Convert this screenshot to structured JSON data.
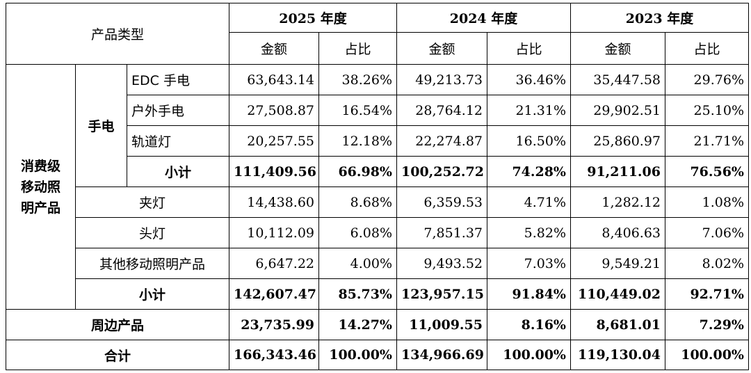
{
  "header": {
    "product_type": "产品类型",
    "years": [
      "2025 年度",
      "2024 年度",
      "2023 年度"
    ],
    "amount": "金额",
    "ratio": "占比"
  },
  "groups": {
    "consumer": [
      "消费级",
      "移动照",
      "明产品"
    ],
    "flashlight": "手电"
  },
  "rows": {
    "edc": {
      "label": "EDC 手电",
      "values": [
        "63,643.14",
        "38.26%",
        "49,213.73",
        "36.46%",
        "35,447.58",
        "29.76%"
      ]
    },
    "outdoor": {
      "label": "户外手电",
      "values": [
        "27,508.87",
        "16.54%",
        "28,764.12",
        "21.31%",
        "29,902.51",
        "25.10%"
      ]
    },
    "track": {
      "label": "轨道灯",
      "values": [
        "20,257.55",
        "12.18%",
        "22,274.87",
        "16.50%",
        "25,860.97",
        "21.71%"
      ]
    },
    "sub1": {
      "label": "小计",
      "values": [
        "111,409.56",
        "66.98%",
        "100,252.72",
        "74.28%",
        "91,211.06",
        "76.56%"
      ]
    },
    "clip": {
      "label": "夹灯",
      "values": [
        "14,438.60",
        "8.68%",
        "6,359.53",
        "4.71%",
        "1,282.12",
        "1.08%"
      ]
    },
    "head": {
      "label": "头灯",
      "values": [
        "10,112.09",
        "6.08%",
        "7,851.37",
        "5.82%",
        "8,406.63",
        "7.06%"
      ]
    },
    "other": {
      "label": "其他移动照明产品",
      "values": [
        "6,647.22",
        "4.00%",
        "9,493.52",
        "7.03%",
        "9,549.21",
        "8.02%"
      ]
    },
    "sub2": {
      "label": "小计",
      "values": [
        "142,607.47",
        "85.73%",
        "123,957.15",
        "91.84%",
        "110,449.02",
        "92.71%"
      ]
    },
    "peripheral": {
      "label": "周边产品",
      "values": [
        "23,735.99",
        "14.27%",
        "11,009.55",
        "8.16%",
        "8,681.01",
        "7.29%"
      ]
    },
    "total": {
      "label": "合计",
      "values": [
        "166,343.46",
        "100.00%",
        "134,966.69",
        "100.00%",
        "119,130.04",
        "100.00%"
      ]
    }
  }
}
